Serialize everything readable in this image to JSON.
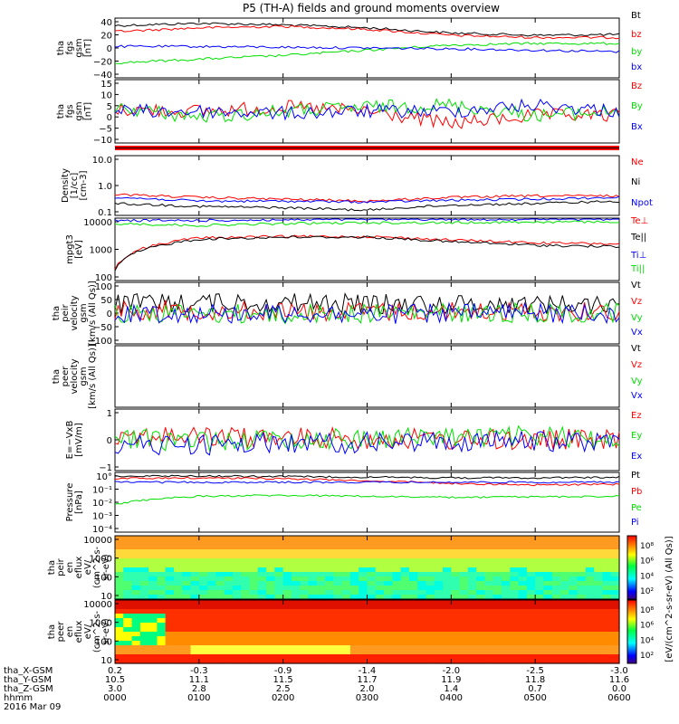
{
  "title": "P5 (TH-A) fields and ground moments overview",
  "footer": {
    "rows": [
      {
        "label": "tha_X-GSM",
        "values": [
          "0.2",
          "-0.3",
          "-0.9",
          "-1.4",
          "-2.0",
          "-2.5",
          "-3.0"
        ]
      },
      {
        "label": "tha_Y-GSM",
        "values": [
          "10.5",
          "11.1",
          "11.5",
          "11.7",
          "11.9",
          "11.8",
          "11.6"
        ]
      },
      {
        "label": "tha_Z-GSM",
        "values": [
          "3.0",
          "2.8",
          "2.5",
          "2.0",
          "1.4",
          "0.7",
          "0.0"
        ]
      },
      {
        "label": "hhmm",
        "values": [
          "0000",
          "0100",
          "0200",
          "0300",
          "0400",
          "0500",
          "0600"
        ]
      }
    ],
    "date": "2016 Mar 09"
  },
  "colors": {
    "black": "#000000",
    "red": "#ff0000",
    "green": "#00e000",
    "blue": "#0000ff"
  },
  "chart_data": [
    {
      "type": "line",
      "panel": "fgs-gsm",
      "ylabel": [
        "tha",
        "fgs",
        "gsm",
        "[nT]"
      ],
      "ylim": [
        -40,
        40
      ],
      "yticks": [
        "40",
        "20",
        "0",
        "−20",
        "−40"
      ],
      "legend": [
        "Bt",
        "bz",
        "by",
        "bx"
      ],
      "x": [
        "0000",
        "0100",
        "0200",
        "0300",
        "0400",
        "0500",
        "0600"
      ],
      "series": [
        {
          "name": "Bt",
          "color": "#000000",
          "values": [
            30,
            33,
            31,
            27,
            20,
            17,
            18
          ]
        },
        {
          "name": "bz",
          "color": "#ff0000",
          "values": [
            22,
            27,
            29,
            25,
            17,
            14,
            14
          ]
        },
        {
          "name": "by",
          "color": "#00e000",
          "values": [
            -20,
            -15,
            -10,
            -3,
            4,
            6,
            6
          ]
        },
        {
          "name": "bx",
          "color": "#0000ff",
          "values": [
            2,
            2,
            1,
            0,
            -1,
            -3,
            -5
          ]
        }
      ]
    },
    {
      "type": "line",
      "panel": "fgs-gsm-dac",
      "ylabel": [
        "tha",
        "fgs",
        "gsm",
        "[nT]"
      ],
      "ylim": [
        -15,
        15
      ],
      "yticks": [
        "15",
        "10",
        "5",
        "0",
        "−5",
        "−10"
      ],
      "legend": [
        "Bz",
        "By",
        "Bx"
      ],
      "x": [
        "0000",
        "0100",
        "0200",
        "0300",
        "0400",
        "0500",
        "0600"
      ],
      "series": [
        {
          "name": "Bz",
          "color": "#ff0000",
          "values": [
            1,
            0,
            2,
            0,
            -6,
            -2,
            -2
          ]
        },
        {
          "name": "By",
          "color": "#00e000",
          "values": [
            2,
            -3,
            0,
            2,
            3,
            -2,
            0
          ]
        },
        {
          "name": "Bx",
          "color": "#0000ff",
          "values": [
            0,
            0,
            -1,
            0,
            0,
            3,
            0
          ]
        }
      ]
    },
    {
      "type": "line",
      "panel": "density",
      "ylabel": [
        "Density",
        "[1/cc]",
        "[cm-3]"
      ],
      "yscale": "log",
      "ylim": [
        0.1,
        10
      ],
      "yticks": [
        "10.0",
        "1.0",
        "0.1"
      ],
      "legend": [
        "Ne",
        "Ni",
        "Npot"
      ],
      "x": [
        "0000",
        "0100",
        "0200",
        "0300",
        "0400",
        "0500",
        "0600"
      ],
      "series": [
        {
          "name": "Ne",
          "color": "#ff0000",
          "values": [
            0.5,
            0.4,
            0.35,
            0.3,
            0.4,
            0.45,
            0.45
          ]
        },
        {
          "name": "Ni",
          "color": "#000000",
          "values": [
            0.25,
            0.2,
            0.18,
            0.15,
            0.22,
            0.25,
            0.3
          ]
        },
        {
          "name": "Npot",
          "color": "#0000ff",
          "values": [
            0.4,
            0.3,
            0.3,
            0.28,
            0.32,
            0.35,
            0.4
          ]
        }
      ]
    },
    {
      "type": "line",
      "panel": "temperature",
      "ylabel": [
        "mpgt3",
        "[eV]"
      ],
      "yscale": "log",
      "ylim": [
        30,
        10000
      ],
      "yticks": [
        "10000",
        "1000",
        "100"
      ],
      "legend": [
        "Te⊥",
        "Te||",
        "Ti⊥",
        "Ti||"
      ],
      "x": [
        "0000",
        "0100",
        "0200",
        "0300",
        "0400",
        "0500",
        "0600"
      ],
      "series": [
        {
          "name": "Te⊥",
          "color": "#ff0000",
          "values": [
            80,
            1600,
            1800,
            1800,
            1300,
            1000,
            900
          ]
        },
        {
          "name": "Te||",
          "color": "#000000",
          "values": [
            70,
            1400,
            1700,
            1700,
            1100,
            800,
            700
          ]
        },
        {
          "name": "Ti⊥",
          "color": "#0000ff",
          "values": [
            8000,
            8000,
            8500,
            9000,
            9000,
            9000,
            9000
          ]
        },
        {
          "name": "Ti||",
          "color": "#00e000",
          "values": [
            6000,
            5000,
            6000,
            6500,
            6500,
            7000,
            7000
          ]
        }
      ]
    },
    {
      "type": "line",
      "panel": "peir-velocity",
      "ylabel": [
        "tha",
        "peir",
        "velocity",
        "gsm",
        "[km/s (All Qs)]"
      ],
      "ylim": [
        -100,
        100
      ],
      "yticks": [
        "100",
        "50",
        "0",
        "−50",
        "−100"
      ],
      "legend": [
        "Vt",
        "Vz",
        "Vy",
        "Vx"
      ],
      "x": [
        "0000",
        "0100",
        "0200",
        "0300",
        "0400",
        "0500",
        "0600"
      ],
      "series": [
        {
          "name": "Vt",
          "color": "#000000",
          "values": [
            30,
            35,
            35,
            30,
            30,
            30,
            30
          ]
        },
        {
          "name": "Vz",
          "color": "#ff0000",
          "values": [
            10,
            10,
            5,
            5,
            5,
            5,
            5
          ]
        },
        {
          "name": "Vy",
          "color": "#00e000",
          "values": [
            0,
            0,
            -5,
            0,
            0,
            0,
            0
          ]
        },
        {
          "name": "Vx",
          "color": "#0000ff",
          "values": [
            0,
            0,
            0,
            -5,
            0,
            0,
            0
          ]
        }
      ]
    },
    {
      "type": "line",
      "panel": "peer-velocity",
      "ylabel": [
        "tha",
        "peer",
        "velocity",
        "gsm",
        "[km/s (All Qs)]"
      ],
      "legend": [
        "Vt",
        "Vz",
        "Vy",
        "Vx"
      ],
      "series": []
    },
    {
      "type": "line",
      "panel": "efield",
      "ylabel": [
        "E=−VxB",
        "[mV/m]"
      ],
      "ylim": [
        -2,
        2
      ],
      "yticks": [
        "1",
        "0",
        "−1"
      ],
      "legend": [
        "Ez",
        "Ey",
        "Ex"
      ],
      "x": [
        "0000",
        "0100",
        "0200",
        "0300",
        "0400",
        "0500",
        "0600"
      ],
      "series": [
        {
          "name": "Ez",
          "color": "#ff0000",
          "values": [
            0.3,
            0.2,
            0.1,
            0.1,
            0.0,
            0.0,
            0.0
          ]
        },
        {
          "name": "Ey",
          "color": "#00e000",
          "values": [
            0.0,
            0.0,
            0.0,
            0.1,
            0.2,
            0.2,
            0.1
          ]
        },
        {
          "name": "Ex",
          "color": "#0000ff",
          "values": [
            -0.4,
            -0.3,
            -0.2,
            -0.2,
            -0.1,
            -0.1,
            -0.1
          ]
        }
      ]
    },
    {
      "type": "line",
      "panel": "pressure",
      "ylabel": [
        "Pressure",
        "[nPa]"
      ],
      "yscale": "log",
      "ylim": [
        1e-05,
        1
      ],
      "yticks": [
        "10°",
        "10⁻¹",
        "10⁻²",
        "10⁻³",
        "10⁻⁴"
      ],
      "legend": [
        "Pt",
        "Pb",
        "Pe",
        "Pi"
      ],
      "x": [
        "0000",
        "0100",
        "0200",
        "0300",
        "0400",
        "0500",
        "0600"
      ],
      "series": [
        {
          "name": "Pt",
          "color": "#000000",
          "values": [
            0.5,
            0.5,
            0.45,
            0.4,
            0.35,
            0.35,
            0.4
          ]
        },
        {
          "name": "Pb",
          "color": "#ff0000",
          "values": [
            0.3,
            0.35,
            0.3,
            0.2,
            0.12,
            0.09,
            0.1
          ]
        },
        {
          "name": "Pe",
          "color": "#00e000",
          "values": [
            0.002,
            0.01,
            0.012,
            0.01,
            0.008,
            0.009,
            0.01
          ]
        },
        {
          "name": "Pi",
          "color": "#0000ff",
          "values": [
            0.15,
            0.15,
            0.15,
            0.15,
            0.15,
            0.15,
            0.15
          ]
        }
      ]
    },
    {
      "type": "heatmap",
      "panel": "peir-en-eflux",
      "ylabel": [
        "tha",
        "peir",
        "en",
        "eflux",
        "eV/",
        "(cm^2-s-",
        "sr-eV)"
      ],
      "yscale": "log",
      "ylim": [
        7,
        20000
      ],
      "yticks": [
        "10000",
        "1000",
        "100",
        "10"
      ],
      "colorbar_ticks": [
        "10⁸",
        "10⁶",
        "10⁴",
        "10²"
      ]
    },
    {
      "type": "heatmap",
      "panel": "peer-en-eflux",
      "ylabel": [
        "tha",
        "peer",
        "en",
        "eflux",
        "eV/",
        "(cm^2-s-",
        "sr-eV)"
      ],
      "yscale": "log",
      "ylim": [
        7,
        20000
      ],
      "yticks": [
        "10000",
        "1000",
        "100",
        "10"
      ],
      "colorbar_ticks": [
        "10⁸",
        "10⁶",
        "10⁴",
        "10²"
      ]
    }
  ],
  "colorbar_label": "[eV/(cm^2-s-sr-eV) (All Qs)]"
}
